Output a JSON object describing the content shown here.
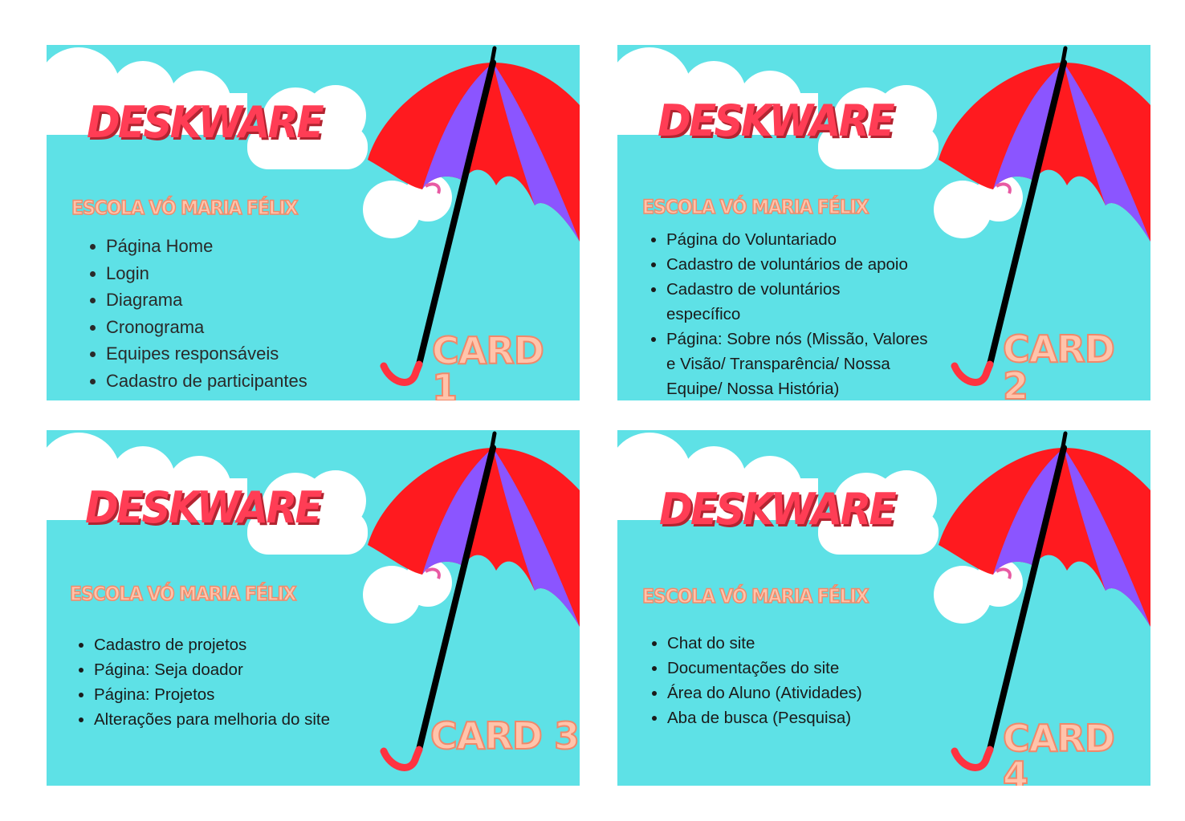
{
  "colors": {
    "sky": "#5ee1e6",
    "cloud": "#ffffff",
    "brand_red": "#ff3d55",
    "umbrella_red": "#ff1a1f",
    "umbrella_purple": "#8b55ff",
    "label_peach": "#ffc4ab"
  },
  "cards": [
    {
      "brand": "DESKWARE",
      "school": "ESCOLA VÓ MARIA FÉLIX",
      "label": "CARD 1",
      "items": [
        "Página Home",
        "Login",
        "Diagrama",
        "Cronograma",
        "Equipes responsáveis",
        "Cadastro de participantes"
      ]
    },
    {
      "brand": "DESKWARE",
      "school": "ESCOLA VÓ MARIA FÉLIX",
      "label": "CARD 2",
      "items": [
        "Página do Voluntariado",
        "Cadastro de voluntários de apoio",
        "Cadastro de voluntários específico",
        "Página: Sobre nós (Missão, Valores e Visão/ Transparência/ Nossa Equipe/ Nossa História)"
      ]
    },
    {
      "brand": "DESKWARE",
      "school": "ESCOLA VÓ MARIA FÉLIX",
      "label": "CARD 3",
      "items": [
        "Cadastro de projetos",
        "Página: Seja doador",
        "Página: Projetos",
        "Alterações para melhoria do site"
      ]
    },
    {
      "brand": "DESKWARE",
      "school": "ESCOLA VÓ MARIA FÉLIX",
      "label": "CARD 4",
      "items": [
        "Chat do site",
        "Documentações do site",
        "Área do Aluno (Atividades)",
        "Aba de busca (Pesquisa)"
      ]
    }
  ]
}
